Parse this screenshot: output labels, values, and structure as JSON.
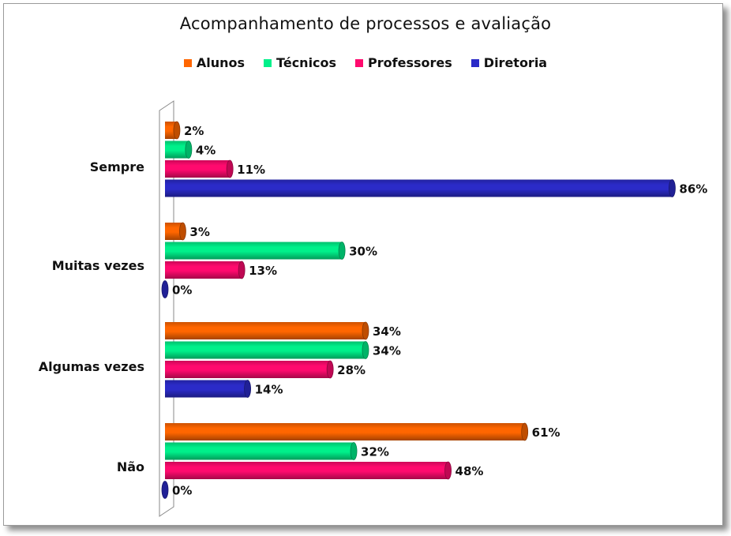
{
  "chart_data": {
    "type": "bar",
    "orientation": "horizontal",
    "title": "Acompanhamento de processos e avaliação",
    "categories": [
      "Sempre",
      "Muitas vezes",
      "Algumas vezes",
      "Não"
    ],
    "series": [
      {
        "name": "Alunos",
        "color": "#ff6600",
        "values": [
          2,
          3,
          34,
          61
        ],
        "labels": [
          "2%",
          "3%",
          "34%",
          "61%"
        ]
      },
      {
        "name": "Técnicos",
        "color": "#00f08a",
        "values": [
          4,
          30,
          34,
          32
        ],
        "labels": [
          "4%",
          "30%",
          "34%",
          "32%"
        ]
      },
      {
        "name": "Professores",
        "color": "#ff0a6e",
        "values": [
          11,
          13,
          28,
          48
        ],
        "labels": [
          "11%",
          "13%",
          "28%",
          "48%"
        ]
      },
      {
        "name": "Diretoria",
        "color": "#2b2bc8",
        "values": [
          86,
          0,
          14,
          0
        ],
        "labels": [
          "86%",
          "0%",
          "14%",
          "0%"
        ]
      }
    ],
    "xlim": [
      0,
      100
    ],
    "legend_position": "top",
    "grid": false
  }
}
